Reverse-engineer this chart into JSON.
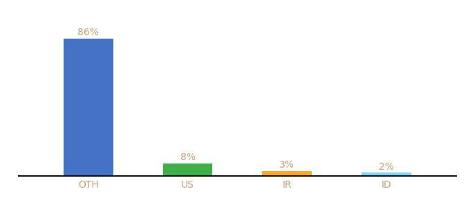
{
  "categories": [
    "OTH",
    "US",
    "IR",
    "ID"
  ],
  "values": [
    86,
    8,
    3,
    2
  ],
  "bar_colors": [
    "#4472c4",
    "#3cb045",
    "#ffa726",
    "#81d4fa"
  ],
  "label_color": "#c8a070",
  "tick_color": "#c8a070",
  "background_color": "#ffffff",
  "ylim": [
    0,
    100
  ],
  "bar_width": 0.5,
  "label_fontsize": 10,
  "tick_fontsize": 10,
  "figsize": [
    6.8,
    3.0
  ],
  "dpi": 100
}
